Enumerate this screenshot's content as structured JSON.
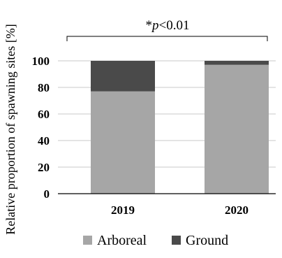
{
  "chart_data": {
    "type": "bar",
    "stacked": true,
    "categories": [
      "2019",
      "2020"
    ],
    "series": [
      {
        "name": "Arboreal",
        "values": [
          77,
          97
        ],
        "color": "#a6a6a6"
      },
      {
        "name": "Ground",
        "values": [
          23,
          3
        ],
        "color": "#4a4a4a"
      }
    ],
    "ylabel": "Relative proportion of spawning sites [%]",
    "xlabel": "",
    "ylim": [
      0,
      100
    ],
    "yticks": [
      0,
      20,
      40,
      60,
      80,
      100
    ],
    "grid": true,
    "legend": "bottom",
    "annotation": {
      "prefix": "*",
      "variable": "p",
      "rest": "<0.01"
    }
  }
}
